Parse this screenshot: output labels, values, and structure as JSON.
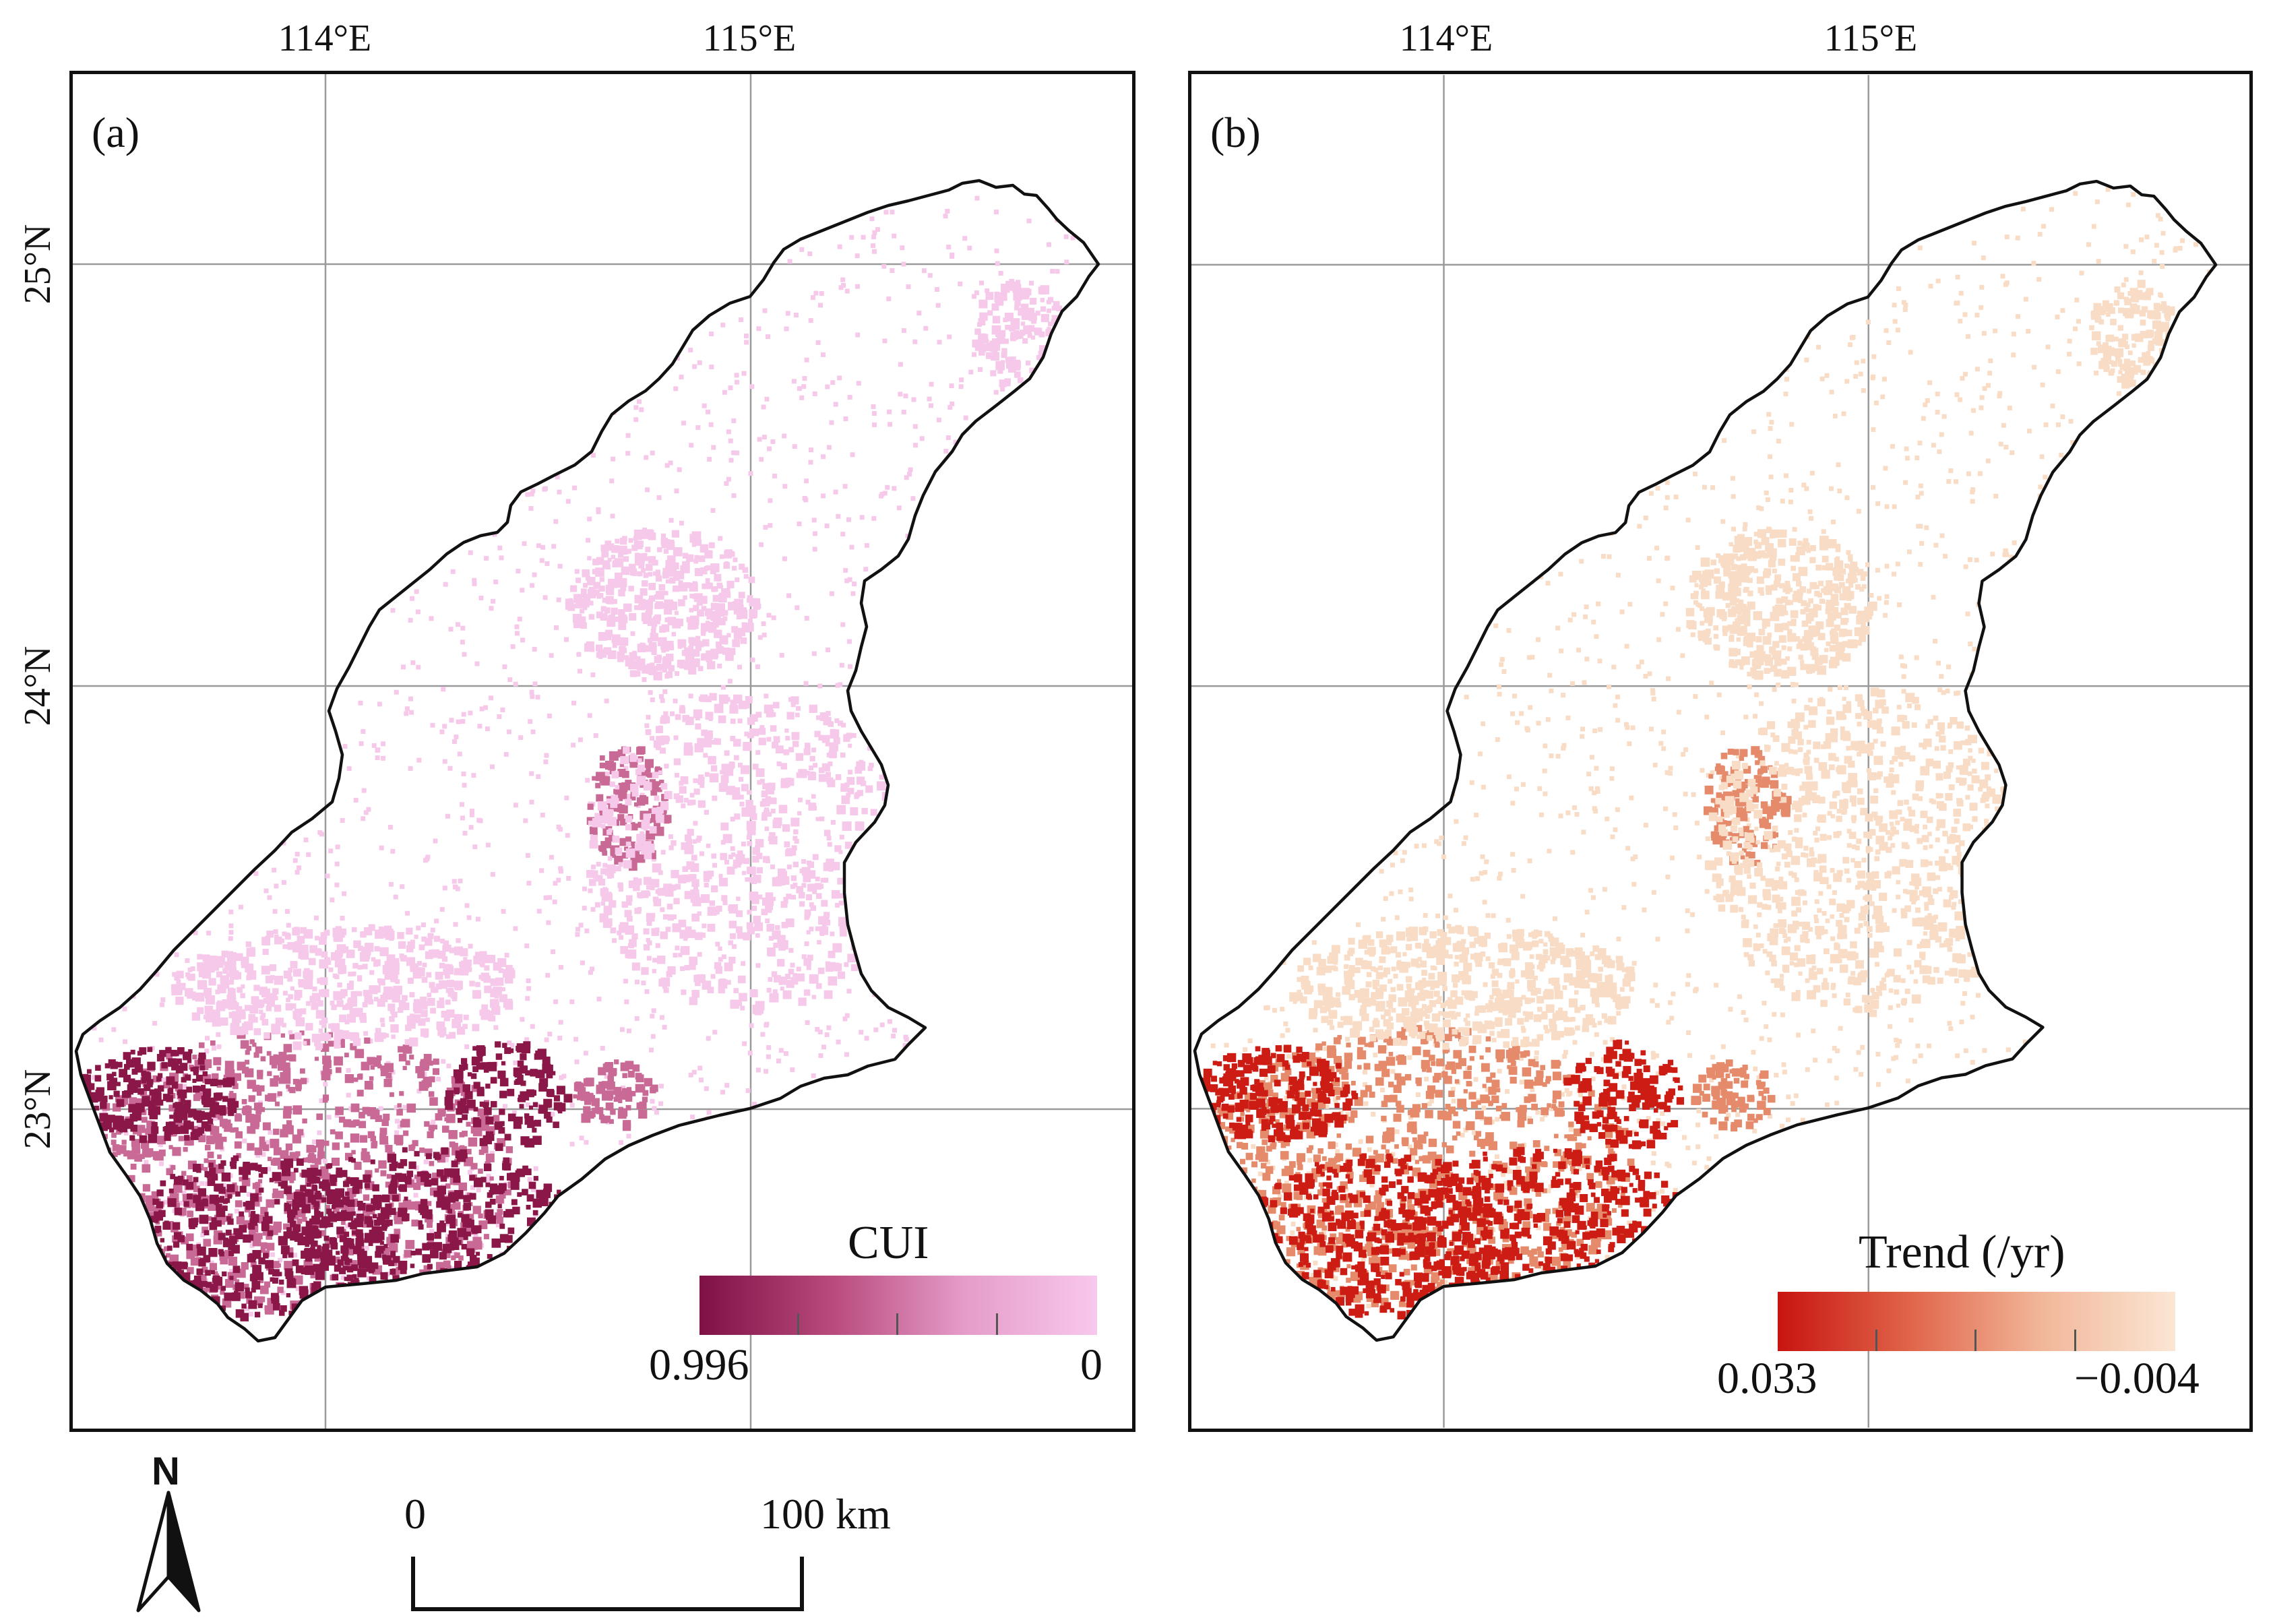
{
  "panels": [
    {
      "label": "(a)",
      "lon_labels": [
        "114°E",
        "115°E"
      ],
      "lat_labels": [
        "25°N",
        "24°N",
        "23°N"
      ],
      "legend": {
        "title": "CUI",
        "min_label": "0.996",
        "max_label": "0",
        "color_dark": "#7d1045",
        "color_light": "#f8c8ec"
      },
      "palette": {
        "low": "#f6c9ea",
        "mid": "#c86a95",
        "high": "#8b1648"
      }
    },
    {
      "label": "(b)",
      "lon_labels": [
        "114°E",
        "115°E"
      ],
      "lat_labels": [
        "25°N",
        "24°N",
        "23°N"
      ],
      "legend": {
        "title": "Trend (/yr)",
        "min_label": "0.033",
        "max_label": "−0.004",
        "color_dark": "#c81410",
        "color_light": "#fbe6d4"
      },
      "palette": {
        "low": "#f8dcc6",
        "mid": "#e58a6a",
        "high": "#cc1c14"
      }
    }
  ],
  "north_arrow": {
    "letter": "N"
  },
  "scale_bar": {
    "start": "0",
    "end": "100 km"
  }
}
